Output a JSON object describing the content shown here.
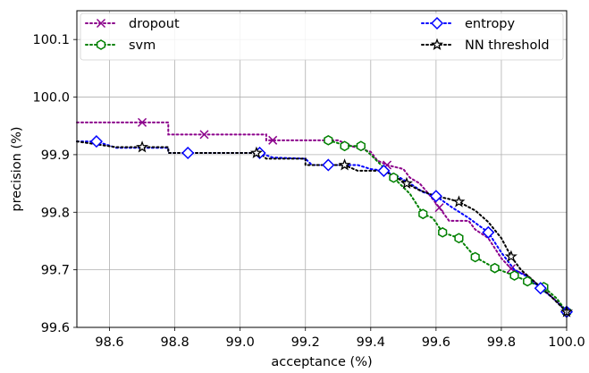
{
  "chart_data": {
    "type": "line",
    "xlabel": "acceptance (%)",
    "ylabel": "precision (%)",
    "xlim": [
      98.5,
      100.0
    ],
    "ylim": [
      99.6,
      100.15
    ],
    "xticks": [
      98.6,
      98.8,
      99.0,
      99.2,
      99.4,
      99.6,
      99.8,
      100.0
    ],
    "yticks": [
      99.6,
      99.7,
      99.8,
      99.9,
      100.0,
      100.1
    ],
    "xtick_labels": [
      "98.6",
      "98.8",
      "99.0",
      "99.2",
      "99.4",
      "99.6",
      "99.8",
      "100.0"
    ],
    "ytick_labels": [
      "99.6",
      "99.7",
      "99.8",
      "99.9",
      "100.0",
      "100.1"
    ],
    "grid": true,
    "legend_placement": "top",
    "series": [
      {
        "name": "dropout",
        "color": "#8b008b",
        "marker": "x",
        "points": [
          [
            98.5,
            99.956
          ],
          [
            98.7,
            99.956
          ],
          [
            98.78,
            99.956
          ],
          [
            98.78,
            99.935
          ],
          [
            98.89,
            99.935
          ],
          [
            99.08,
            99.935
          ],
          [
            99.08,
            99.925
          ],
          [
            99.1,
            99.925
          ],
          [
            99.3,
            99.925
          ],
          [
            99.34,
            99.915
          ],
          [
            99.4,
            99.905
          ],
          [
            99.42,
            99.89
          ],
          [
            99.45,
            99.882
          ],
          [
            99.5,
            99.875
          ],
          [
            99.52,
            99.86
          ],
          [
            99.55,
            99.85
          ],
          [
            99.58,
            99.83
          ],
          [
            99.61,
            99.808
          ],
          [
            99.64,
            99.785
          ],
          [
            99.7,
            99.785
          ],
          [
            99.72,
            99.77
          ],
          [
            99.76,
            99.755
          ],
          [
            99.8,
            99.72
          ],
          [
            99.83,
            99.702
          ],
          [
            99.88,
            99.69
          ],
          [
            99.92,
            99.67
          ],
          [
            99.97,
            99.645
          ],
          [
            100.0,
            99.627
          ]
        ],
        "markers": [
          [
            98.7,
            99.956
          ],
          [
            98.89,
            99.935
          ],
          [
            99.1,
            99.925
          ],
          [
            99.45,
            99.882
          ],
          [
            99.61,
            99.808
          ],
          [
            99.83,
            99.702
          ]
        ]
      },
      {
        "name": "svm",
        "color": "#008000",
        "marker": "hexagon",
        "points": [
          [
            99.27,
            99.925
          ],
          [
            99.3,
            99.92
          ],
          [
            99.32,
            99.915
          ],
          [
            99.37,
            99.915
          ],
          [
            99.4,
            99.9
          ],
          [
            99.43,
            99.883
          ],
          [
            99.47,
            99.86
          ],
          [
            99.52,
            99.832
          ],
          [
            99.56,
            99.797
          ],
          [
            99.59,
            99.79
          ],
          [
            99.62,
            99.765
          ],
          [
            99.67,
            99.755
          ],
          [
            99.72,
            99.722
          ],
          [
            99.78,
            99.703
          ],
          [
            99.84,
            99.69
          ],
          [
            99.88,
            99.68
          ],
          [
            99.93,
            99.67
          ],
          [
            99.97,
            99.65
          ],
          [
            100.0,
            99.627
          ]
        ],
        "markers": [
          [
            99.27,
            99.925
          ],
          [
            99.32,
            99.915
          ],
          [
            99.37,
            99.915
          ],
          [
            99.47,
            99.86
          ],
          [
            99.56,
            99.797
          ],
          [
            99.62,
            99.765
          ],
          [
            99.67,
            99.755
          ],
          [
            99.72,
            99.722
          ],
          [
            99.78,
            99.703
          ],
          [
            99.84,
            99.69
          ],
          [
            99.88,
            99.68
          ],
          [
            99.93,
            99.67
          ],
          [
            100.0,
            99.627
          ]
        ]
      },
      {
        "name": "entropy",
        "color": "#0000ff",
        "marker": "diamond",
        "points": [
          [
            98.5,
            99.923
          ],
          [
            98.56,
            99.923
          ],
          [
            98.62,
            99.912
          ],
          [
            98.78,
            99.912
          ],
          [
            98.78,
            99.903
          ],
          [
            98.84,
            99.903
          ],
          [
            99.06,
            99.903
          ],
          [
            99.1,
            99.895
          ],
          [
            99.2,
            99.893
          ],
          [
            99.22,
            99.882
          ],
          [
            99.27,
            99.882
          ],
          [
            99.36,
            99.882
          ],
          [
            99.4,
            99.875
          ],
          [
            99.44,
            99.872
          ],
          [
            99.48,
            99.863
          ],
          [
            99.52,
            99.85
          ],
          [
            99.56,
            99.835
          ],
          [
            99.6,
            99.828
          ],
          [
            99.65,
            99.808
          ],
          [
            99.7,
            99.79
          ],
          [
            99.76,
            99.765
          ],
          [
            99.8,
            99.73
          ],
          [
            99.84,
            99.7
          ],
          [
            99.88,
            99.688
          ],
          [
            99.92,
            99.668
          ],
          [
            99.96,
            99.65
          ],
          [
            100.0,
            99.627
          ]
        ],
        "markers": [
          [
            98.56,
            99.923
          ],
          [
            98.84,
            99.903
          ],
          [
            99.06,
            99.903
          ],
          [
            99.27,
            99.882
          ],
          [
            99.44,
            99.872
          ],
          [
            99.6,
            99.828
          ],
          [
            99.76,
            99.765
          ],
          [
            99.92,
            99.668
          ],
          [
            100.0,
            99.627
          ]
        ]
      },
      {
        "name": "NN threshold",
        "color": "#000000",
        "marker": "star",
        "points": [
          [
            98.5,
            99.923
          ],
          [
            98.62,
            99.913
          ],
          [
            98.7,
            99.913
          ],
          [
            98.78,
            99.913
          ],
          [
            98.78,
            99.903
          ],
          [
            99.06,
            99.903
          ],
          [
            99.08,
            99.893
          ],
          [
            99.2,
            99.893
          ],
          [
            99.2,
            99.882
          ],
          [
            99.32,
            99.882
          ],
          [
            99.36,
            99.872
          ],
          [
            99.44,
            99.872
          ],
          [
            99.47,
            99.863
          ],
          [
            99.51,
            99.85
          ],
          [
            99.55,
            99.838
          ],
          [
            99.6,
            99.828
          ],
          [
            99.64,
            99.823
          ],
          [
            99.67,
            99.818
          ],
          [
            99.72,
            99.803
          ],
          [
            99.76,
            99.783
          ],
          [
            99.8,
            99.755
          ],
          [
            99.83,
            99.723
          ],
          [
            99.86,
            99.7
          ],
          [
            99.9,
            99.68
          ],
          [
            99.95,
            99.655
          ],
          [
            100.0,
            99.627
          ]
        ],
        "markers": [
          [
            98.7,
            99.913
          ],
          [
            99.05,
            99.903
          ],
          [
            99.32,
            99.882
          ],
          [
            99.51,
            99.85
          ],
          [
            99.67,
            99.818
          ],
          [
            99.83,
            99.723
          ],
          [
            100.0,
            99.627
          ]
        ]
      }
    ]
  }
}
